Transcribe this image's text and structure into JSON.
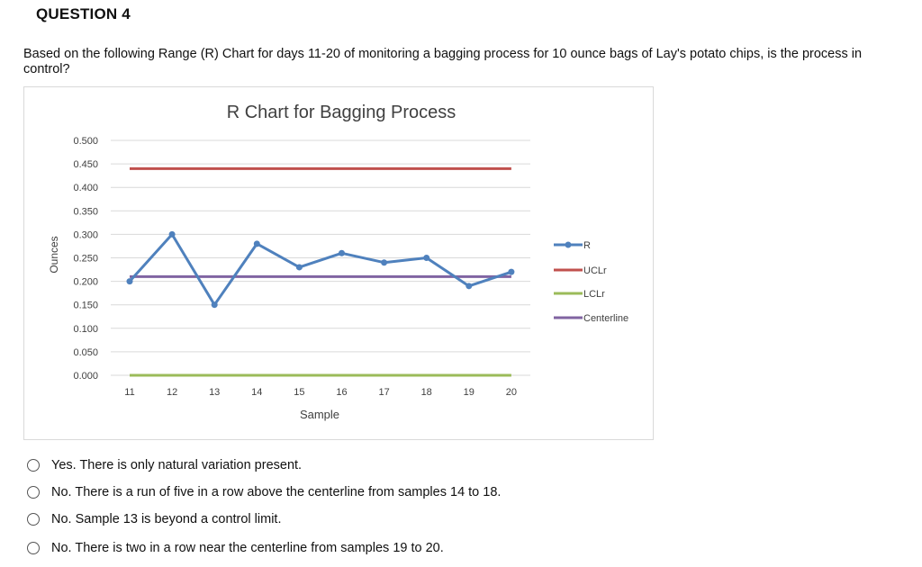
{
  "question": {
    "title": "QUESTION 4",
    "text": "Based on the following Range (R) Chart for days 11-20 of monitoring a bagging process for 10 ounce bags of Lay's potato chips, is the process in control?"
  },
  "chart_data": {
    "type": "line",
    "title": "R Chart for Bagging Process",
    "xlabel": "Sample",
    "ylabel": "Ounces",
    "x": [
      11,
      12,
      13,
      14,
      15,
      16,
      17,
      18,
      19,
      20
    ],
    "ylim": [
      0,
      0.5
    ],
    "yticks": [
      "0.500",
      "0.450",
      "0.400",
      "0.350",
      "0.300",
      "0.250",
      "0.200",
      "0.150",
      "0.100",
      "0.050",
      "0.000"
    ],
    "grid": true,
    "legend_position": "right",
    "series": [
      {
        "name": "R",
        "color": "#4f81bd",
        "markers": true,
        "values": [
          0.2,
          0.3,
          0.15,
          0.28,
          0.23,
          0.26,
          0.24,
          0.25,
          0.19,
          0.22
        ]
      },
      {
        "name": "UCLr",
        "color": "#c0504d",
        "markers": false,
        "values": [
          0.44,
          0.44,
          0.44,
          0.44,
          0.44,
          0.44,
          0.44,
          0.44,
          0.44,
          0.44
        ]
      },
      {
        "name": "LCLr",
        "color": "#9bbb59",
        "markers": false,
        "values": [
          0,
          0,
          0,
          0,
          0,
          0,
          0,
          0,
          0,
          0
        ]
      },
      {
        "name": "Centerline",
        "color": "#8064a2",
        "markers": false,
        "values": [
          0.21,
          0.21,
          0.21,
          0.21,
          0.21,
          0.21,
          0.21,
          0.21,
          0.21,
          0.21
        ]
      }
    ]
  },
  "choices": [
    {
      "label": "Yes. There is only natural variation present."
    },
    {
      "label": "No. There is a run of five in a row above the centerline from samples 14 to 18."
    },
    {
      "label": "No. Sample 13 is beyond a control limit."
    },
    {
      "label": "No. There is two in a row near the centerline from samples 19 to 20."
    }
  ]
}
